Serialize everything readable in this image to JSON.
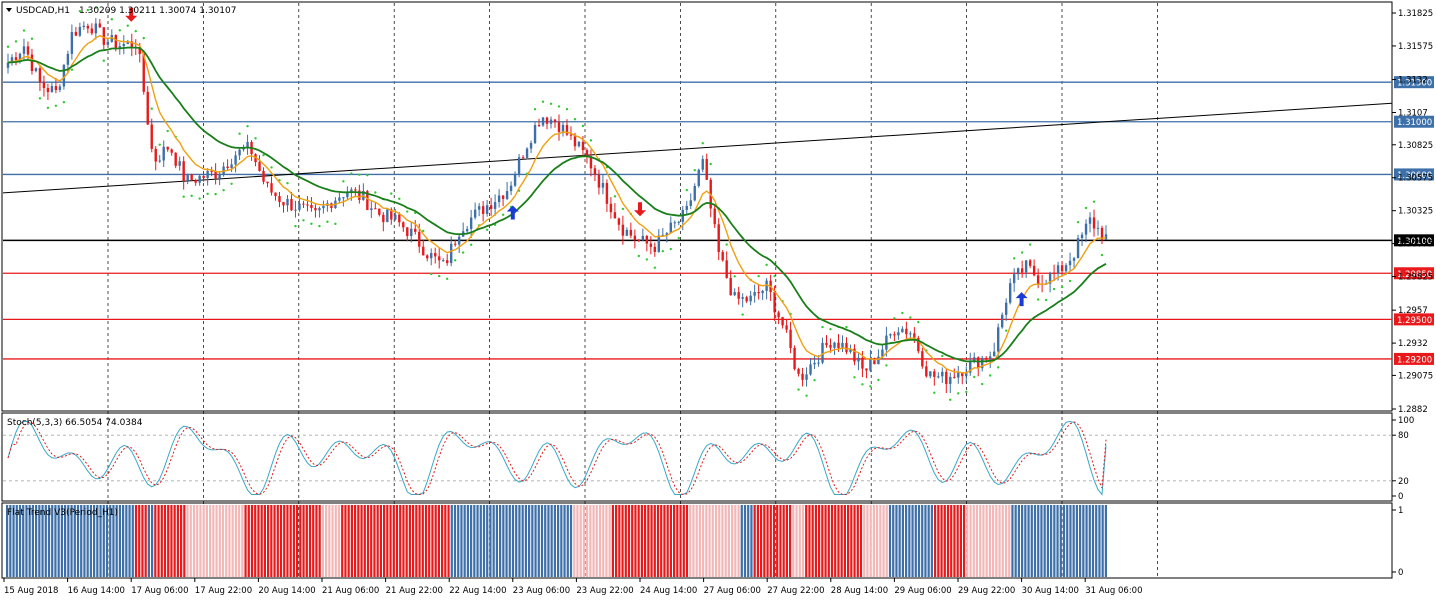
{
  "header": {
    "symbol": "USDCAD,H1",
    "ohlc": "1.30209 1.30211 1.30074 1.30107"
  },
  "colors": {
    "bull": "#3d6fa8",
    "bear": "#e8191b",
    "sar": "#32c832",
    "ma_fast": "#f0a010",
    "ma_slow": "#1a7f1a",
    "hline_blue": "#3d6fa8",
    "hline_red": "#e8191b",
    "stoch_main": "#3aa8c8",
    "stoch_signal": "#e8191b"
  },
  "chart_data": [
    {
      "type": "candlestick",
      "title": "USDCAD,H1",
      "y_ticks": [
        1.31825,
        1.31575,
        1.3132,
        1.3107,
        1.30825,
        1.30575,
        1.30325,
        1.30075,
        1.29825,
        1.2957,
        1.2932,
        1.29075,
        1.2882
      ],
      "ylim": [
        1.2882,
        1.31825
      ],
      "x_ticks": [
        "15 Aug 2018",
        "16 Aug 14:00",
        "17 Aug 06:00",
        "17 Aug 22:00",
        "20 Aug 14:00",
        "21 Aug 06:00",
        "21 Aug 22:00",
        "22 Aug 14:00",
        "23 Aug 06:00",
        "23 Aug 22:00",
        "24 Aug 14:00",
        "27 Aug 06:00",
        "27 Aug 22:00",
        "28 Aug 14:00",
        "29 Aug 06:00",
        "29 Aug 22:00",
        "30 Aug 14:00",
        "31 Aug 06:00"
      ],
      "horizontal_levels": [
        {
          "label": "1.31300",
          "value": 1.313,
          "color": "blue"
        },
        {
          "label": "1.31000",
          "value": 1.31,
          "color": "blue"
        },
        {
          "label": "1.30600",
          "value": 1.306,
          "color": "blue"
        },
        {
          "label": "1.30100",
          "value": 1.301,
          "color": "black"
        },
        {
          "label": "1.29850",
          "value": 1.2985,
          "color": "red"
        },
        {
          "label": "1.29500",
          "value": 1.295,
          "color": "red"
        },
        {
          "label": "1.29200",
          "value": 1.292,
          "color": "red"
        }
      ],
      "trendline": {
        "start": [
          0,
          1.3046
        ],
        "end": [
          1.0,
          1.3114
        ]
      },
      "price_path": [
        1.3145,
        1.3158,
        1.3128,
        1.3122,
        1.3168,
        1.3175,
        1.3162,
        1.3158,
        1.316,
        1.307,
        1.3082,
        1.3055,
        1.3058,
        1.3062,
        1.3075,
        1.308,
        1.305,
        1.304,
        1.3035,
        1.3028,
        1.304,
        1.3048,
        1.3042,
        1.303,
        1.3025,
        1.3015,
        1.3,
        1.299,
        1.302,
        1.303,
        1.304,
        1.305,
        1.308,
        1.3105,
        1.31,
        1.3085,
        1.307,
        1.3045,
        1.302,
        1.301,
        1.3005,
        1.3018,
        1.303,
        1.307,
        1.3,
        1.2965,
        1.2965,
        1.2975,
        1.2945,
        1.2905,
        1.292,
        1.2935,
        1.2928,
        1.291,
        1.2925,
        1.2945,
        1.294,
        1.2908,
        1.2905,
        1.2912,
        1.2918,
        1.2925,
        1.2975,
        1.299,
        1.298,
        1.2985,
        1.3,
        1.3025,
        1.3012
      ],
      "signal_arrows": [
        {
          "dir": "down",
          "time": "17 Aug 06:00"
        },
        {
          "dir": "up",
          "time": "23 Aug 06:00"
        },
        {
          "dir": "down",
          "time": "24 Aug 14:00"
        },
        {
          "dir": "up",
          "time": "30 Aug 14:00"
        }
      ],
      "overlays": [
        "Parabolic SAR",
        "Moving Average (fast)",
        "Moving Average (slow)"
      ]
    },
    {
      "type": "line",
      "title": "Stoch(5,3,3) 66.5054 74.0384",
      "y_ticks": [
        100,
        80,
        20,
        0
      ],
      "ylim": [
        0,
        100
      ],
      "levels": [
        80,
        20
      ],
      "series": [
        {
          "name": "Main",
          "value": 66.5054
        },
        {
          "name": "Signal",
          "value": 74.0384
        }
      ]
    },
    {
      "type": "bar",
      "title": "Flat Trend V3(Period_H1)",
      "y_ticks": [
        1,
        0
      ],
      "ylim": [
        0,
        1
      ],
      "segments": [
        {
          "state": "bull",
          "bars": 40
        },
        {
          "state": "bear",
          "bars": 4
        },
        {
          "state": "bull",
          "bars": 2
        },
        {
          "state": "bear",
          "bars": 10
        },
        {
          "state": "flat",
          "bars": 18
        },
        {
          "state": "bear",
          "bars": 24
        },
        {
          "state": "flat",
          "bars": 6
        },
        {
          "state": "bear",
          "bars": 34
        },
        {
          "state": "bull",
          "bars": 38
        },
        {
          "state": "flat",
          "bars": 12
        },
        {
          "state": "bear",
          "bars": 24
        },
        {
          "state": "flat",
          "bars": 16
        },
        {
          "state": "bull",
          "bars": 4
        },
        {
          "state": "bear",
          "bars": 12
        },
        {
          "state": "flat",
          "bars": 4
        },
        {
          "state": "bear",
          "bars": 18
        },
        {
          "state": "flat",
          "bars": 8
        },
        {
          "state": "bull",
          "bars": 14
        },
        {
          "state": "bear",
          "bars": 10
        },
        {
          "state": "flat",
          "bars": 14
        },
        {
          "state": "bull",
          "bars": 30
        }
      ]
    }
  ]
}
